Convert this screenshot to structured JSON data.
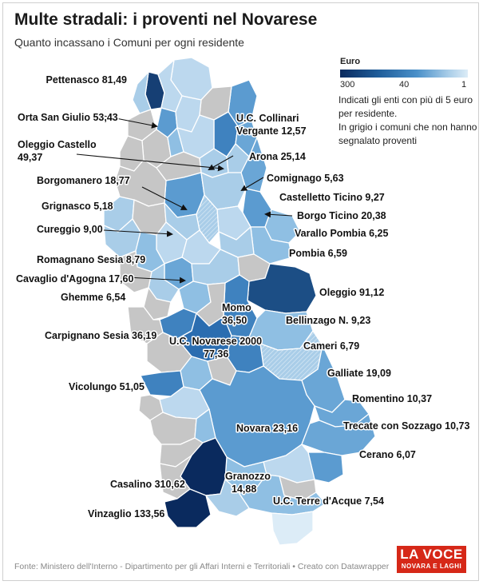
{
  "header": {
    "title": "Multe stradali: i proventi nel Novarese",
    "subtitle": "Quanto incassano i Comuni per ogni residente"
  },
  "legend": {
    "title": "Euro",
    "max_label": "300",
    "mid_label": "40",
    "min_label": "1",
    "note_1": "Indicati gli enti con più di 5 euro per residente.",
    "note_2": "In grigio i comuni che non hanno segnalato proventi",
    "colors": [
      "#0a2a5e",
      "#1f5d9a",
      "#4a90c9",
      "#a9cde8",
      "#dcecf7"
    ],
    "no_data_color": "#c6c6c6"
  },
  "footer": {
    "source": "Fonte: Ministero dell'Interno - Dipartimento per gli Affari Interni e Territoriali • Creato con Datawrapper"
  },
  "logo": {
    "top": "LA VOCE",
    "bottom": "NOVARA E LAGHI",
    "color": "#d62818"
  },
  "labels": [
    {
      "line1": "Pettenasco 81,49"
    },
    {
      "line1": "Orta San Giulio 53,43"
    },
    {
      "line1": "U.C. Collinari",
      "line2": "Vergante 12,57"
    },
    {
      "line1": "Oleggio Castello",
      "line2": "49,37"
    },
    {
      "line1": "Arona 25,14"
    },
    {
      "line1": "Comignago 5,63"
    },
    {
      "line1": "Borgomanero 18,77"
    },
    {
      "line1": "Castelletto  Ticino 9,27"
    },
    {
      "line1": "Grignasco 5,18"
    },
    {
      "line1": "Borgo Ticino 20,38"
    },
    {
      "line1": "Cureggio 9,00"
    },
    {
      "line1": "Varallo Pombia 6,25"
    },
    {
      "line1": "Pombia 6,59"
    },
    {
      "line1": "Romagnano Sesia 8,79"
    },
    {
      "line1": "Cavaglio d'Agogna 17,60"
    },
    {
      "line1": "Oleggio 91,12"
    },
    {
      "line1": "Ghemme 6,54"
    },
    {
      "line1": "Momo",
      "line2": "36,50"
    },
    {
      "line1": "Bellinzago N. 9,23"
    },
    {
      "line1": "Carpignano Sesia 36,19"
    },
    {
      "line1": "U.C. Novarese 2000",
      "line2": "77,36"
    },
    {
      "line1": "Cameri 6,79"
    },
    {
      "line1": "Galliate 19,09"
    },
    {
      "line1": "Vicolungo 51,05"
    },
    {
      "line1": "Romentino 10,37"
    },
    {
      "line1": "Novara 23,16"
    },
    {
      "line1": "Trecate con Sozzago 10,73"
    },
    {
      "line1": "Cerano 6,07"
    },
    {
      "line1": "Granozzo",
      "line2": "14,88"
    },
    {
      "line1": "Casalino 310,62"
    },
    {
      "line1": "U.C. Terre d'Acque 7,54"
    },
    {
      "line1": "Vinzaglio 133,56"
    }
  ]
}
